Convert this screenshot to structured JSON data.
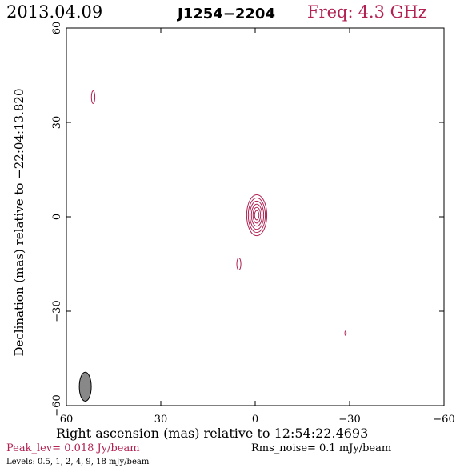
{
  "header": {
    "date": "2013.04.09",
    "source": "J1254−2204",
    "freq_label": "Freq:",
    "freq_value": "4.3 GHz"
  },
  "footer": {
    "peak": "Peak_lev=  0.018 Jy/beam",
    "rms": "Rms_noise=  0.1 mJy/beam",
    "levels": "Levels: 0.5,   1,   2,   4,   9,   18 mJy/beam"
  },
  "colors": {
    "contour": "#b22252",
    "beam_fill": "#888888"
  },
  "chart_data": {
    "type": "contour",
    "xlabel": "Right ascension (mas) relative to 12:54:22.4693",
    "ylabel": "Declination (mas) relative to −22:04:13.820",
    "xlim": [
      60,
      -60
    ],
    "ylim": [
      -60,
      60
    ],
    "xticks": [
      60,
      30,
      0,
      -30,
      -60
    ],
    "yticks": [
      -60,
      -30,
      0,
      30,
      60
    ],
    "xtick_labels": [
      "60",
      "30",
      "0",
      "−30",
      "−60"
    ],
    "ytick_labels": [
      "−60",
      "−30",
      "0",
      "30",
      "60"
    ],
    "contour_levels_mjy": [
      0.5,
      1,
      2,
      4,
      9,
      18
    ],
    "main_component": {
      "x": -0.5,
      "y": 0.5,
      "radii_x": [
        3.2,
        2.7,
        2.2,
        1.7,
        1.2,
        0.7
      ],
      "radii_y": [
        6.5,
        5.5,
        4.5,
        3.5,
        2.5,
        1.5
      ]
    },
    "extra_components": [
      {
        "x": 51.5,
        "y": 38,
        "rx": 0.55,
        "ry": 2.0
      },
      {
        "x": 5.2,
        "y": -15,
        "rx": 0.65,
        "ry": 1.9
      },
      {
        "x": -28.7,
        "y": -37,
        "rx": 0.2,
        "ry": 0.7
      }
    ],
    "beam": {
      "x": 54,
      "y": -54,
      "rx": 1.9,
      "ry": 4.6
    }
  }
}
